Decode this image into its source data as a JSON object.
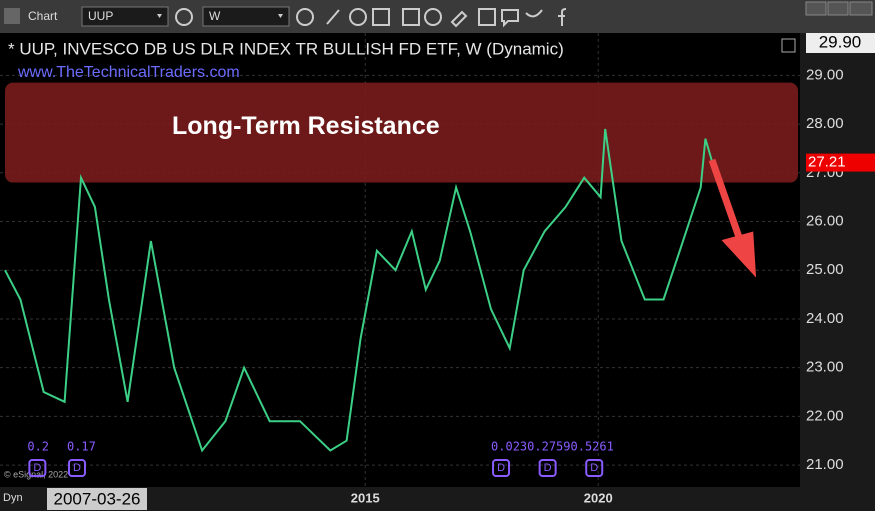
{
  "toolbar": {
    "app_label": "Chart",
    "symbol": "UUP",
    "interval": "W"
  },
  "chart_data": {
    "type": "line",
    "title": "* UUP, INVESCO DB US DLR INDEX TR BULLISH FD ETF, W (Dynamic)",
    "subtitle": "www.TheTechnicalTraders.com",
    "annotation": "Long-Term Resistance",
    "resistance_range": [
      26.8,
      28.85
    ],
    "color": "#3ccf86",
    "x": [
      2007.27,
      2007.6,
      2008.1,
      2008.55,
      2008.9,
      2009.2,
      2009.5,
      2009.9,
      2010.4,
      2010.9,
      2011.5,
      2012.0,
      2012.4,
      2012.95,
      2013.6,
      2014.25,
      2014.6,
      2014.9,
      2015.25,
      2015.65,
      2016.0,
      2016.3,
      2016.6,
      2016.95,
      2017.25,
      2017.7,
      2018.1,
      2018.4,
      2018.85,
      2019.3,
      2019.7,
      2020.05,
      2020.15,
      2020.5,
      2021.0,
      2021.4,
      2021.75,
      2022.2,
      2022.3,
      2022.45
    ],
    "values": [
      25.0,
      24.4,
      22.5,
      22.3,
      26.9,
      26.3,
      24.4,
      22.3,
      25.6,
      23.0,
      21.3,
      21.9,
      23.0,
      21.9,
      21.9,
      21.3,
      21.5,
      23.6,
      25.4,
      25.0,
      25.8,
      24.6,
      25.2,
      26.7,
      25.8,
      24.2,
      23.4,
      25.0,
      25.8,
      26.3,
      26.9,
      26.5,
      27.9,
      25.6,
      24.4,
      24.4,
      25.4,
      26.7,
      27.7,
      27.21
    ],
    "xlim": [
      2007.27,
      2024.33
    ],
    "xticks": [
      2015,
      2020
    ],
    "start_date": "2007-03-26",
    "ylim": [
      20.55,
      29.87
    ],
    "yticks": [
      {
        "value": 21,
        "label": "21.00"
      },
      {
        "value": 22,
        "label": "22.00"
      },
      {
        "value": 23,
        "label": "23.00"
      },
      {
        "value": 24,
        "label": "24.00"
      },
      {
        "value": 25,
        "label": "25.00"
      },
      {
        "value": 26,
        "label": "26.00"
      },
      {
        "value": 27,
        "label": "27.00"
      },
      {
        "value": 28,
        "label": "28.00"
      },
      {
        "value": 29,
        "label": "29.00"
      }
    ],
    "grid": true,
    "header_price": {
      "value": 29.9,
      "label": "29.90"
    },
    "last_price": 27.21,
    "dividend_marker": "D",
    "dividends": [
      {
        "x": 2007.75,
        "label": "0.2"
      },
      {
        "x": 2008.6,
        "label": "0.17"
      },
      {
        "x": 2017.7,
        "label": "0.0230.27590.5261"
      }
    ],
    "dividend_icons": [
      2007.75,
      2008.6,
      2017.7,
      2018.7,
      2019.7
    ],
    "range_label": "Dyn",
    "copyright": "© eSignal, 2022"
  }
}
